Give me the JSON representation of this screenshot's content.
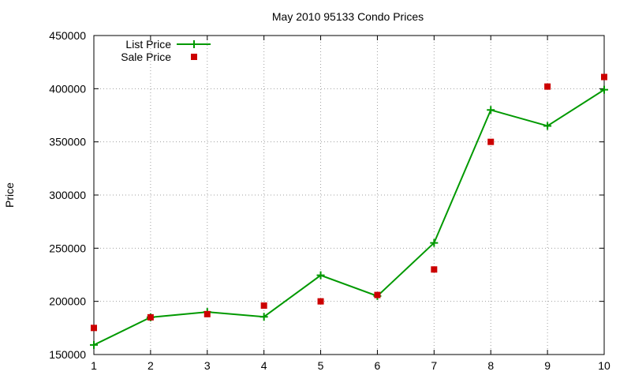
{
  "chart_data": {
    "type": "line",
    "title": "May 2010 95133 Condo Prices",
    "xlabel": "",
    "ylabel": "Price",
    "x": [
      1,
      2,
      3,
      4,
      5,
      6,
      7,
      8,
      9,
      10
    ],
    "xlim": [
      1,
      10
    ],
    "ylim": [
      150000,
      450000
    ],
    "xticks": [
      "1",
      "2",
      "3",
      "4",
      "5",
      "6",
      "7",
      "8",
      "9",
      "10"
    ],
    "yticks": [
      "150000",
      "200000",
      "250000",
      "300000",
      "350000",
      "400000",
      "450000"
    ],
    "grid": true,
    "legend_position": "top-left",
    "series": [
      {
        "name": "List Price",
        "style": "lines+points",
        "marker": "plus",
        "color": "#009900",
        "values": [
          159000,
          185000,
          190000,
          185500,
          224500,
          205000,
          255000,
          380000,
          365000,
          399000
        ]
      },
      {
        "name": "Sale Price",
        "style": "points",
        "marker": "square",
        "color": "#cc0000",
        "values": [
          175000,
          185000,
          188000,
          196000,
          200000,
          206000,
          230000,
          350000,
          402000,
          411000
        ]
      }
    ]
  }
}
